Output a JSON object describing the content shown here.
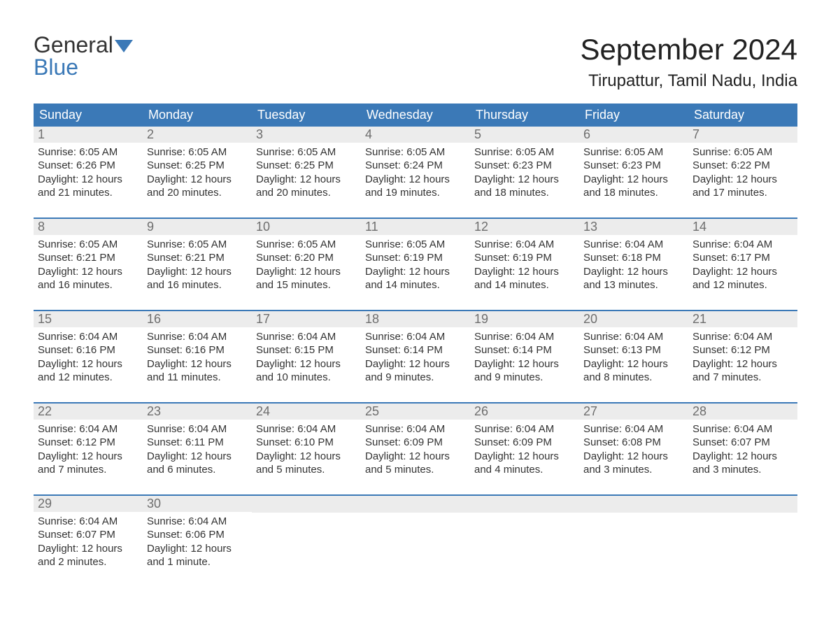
{
  "brand": {
    "word1": "General",
    "word2": "Blue",
    "flag_color": "#3b79b7",
    "text_color": "#333333"
  },
  "title": "September 2024",
  "location": "Tirupattur, Tamil Nadu, India",
  "day_headers": [
    "Sunday",
    "Monday",
    "Tuesday",
    "Wednesday",
    "Thursday",
    "Friday",
    "Saturday"
  ],
  "colors": {
    "header_bg": "#3b79b7",
    "header_text": "#ffffff",
    "daynum_bg": "#ececec",
    "daynum_text": "#6e6e6e",
    "body_text": "#333333",
    "row_divider": "#3b79b7",
    "background": "#ffffff"
  },
  "typography": {
    "title_fontsize": 42,
    "location_fontsize": 24,
    "header_fontsize": 18,
    "daynum_fontsize": 18,
    "body_fontsize": 15
  },
  "weeks": [
    [
      {
        "n": "1",
        "sunrise": "Sunrise: 6:05 AM",
        "sunset": "Sunset: 6:26 PM",
        "day1": "Daylight: 12 hours",
        "day2": "and 21 minutes."
      },
      {
        "n": "2",
        "sunrise": "Sunrise: 6:05 AM",
        "sunset": "Sunset: 6:25 PM",
        "day1": "Daylight: 12 hours",
        "day2": "and 20 minutes."
      },
      {
        "n": "3",
        "sunrise": "Sunrise: 6:05 AM",
        "sunset": "Sunset: 6:25 PM",
        "day1": "Daylight: 12 hours",
        "day2": "and 20 minutes."
      },
      {
        "n": "4",
        "sunrise": "Sunrise: 6:05 AM",
        "sunset": "Sunset: 6:24 PM",
        "day1": "Daylight: 12 hours",
        "day2": "and 19 minutes."
      },
      {
        "n": "5",
        "sunrise": "Sunrise: 6:05 AM",
        "sunset": "Sunset: 6:23 PM",
        "day1": "Daylight: 12 hours",
        "day2": "and 18 minutes."
      },
      {
        "n": "6",
        "sunrise": "Sunrise: 6:05 AM",
        "sunset": "Sunset: 6:23 PM",
        "day1": "Daylight: 12 hours",
        "day2": "and 18 minutes."
      },
      {
        "n": "7",
        "sunrise": "Sunrise: 6:05 AM",
        "sunset": "Sunset: 6:22 PM",
        "day1": "Daylight: 12 hours",
        "day2": "and 17 minutes."
      }
    ],
    [
      {
        "n": "8",
        "sunrise": "Sunrise: 6:05 AM",
        "sunset": "Sunset: 6:21 PM",
        "day1": "Daylight: 12 hours",
        "day2": "and 16 minutes."
      },
      {
        "n": "9",
        "sunrise": "Sunrise: 6:05 AM",
        "sunset": "Sunset: 6:21 PM",
        "day1": "Daylight: 12 hours",
        "day2": "and 16 minutes."
      },
      {
        "n": "10",
        "sunrise": "Sunrise: 6:05 AM",
        "sunset": "Sunset: 6:20 PM",
        "day1": "Daylight: 12 hours",
        "day2": "and 15 minutes."
      },
      {
        "n": "11",
        "sunrise": "Sunrise: 6:05 AM",
        "sunset": "Sunset: 6:19 PM",
        "day1": "Daylight: 12 hours",
        "day2": "and 14 minutes."
      },
      {
        "n": "12",
        "sunrise": "Sunrise: 6:04 AM",
        "sunset": "Sunset: 6:19 PM",
        "day1": "Daylight: 12 hours",
        "day2": "and 14 minutes."
      },
      {
        "n": "13",
        "sunrise": "Sunrise: 6:04 AM",
        "sunset": "Sunset: 6:18 PM",
        "day1": "Daylight: 12 hours",
        "day2": "and 13 minutes."
      },
      {
        "n": "14",
        "sunrise": "Sunrise: 6:04 AM",
        "sunset": "Sunset: 6:17 PM",
        "day1": "Daylight: 12 hours",
        "day2": "and 12 minutes."
      }
    ],
    [
      {
        "n": "15",
        "sunrise": "Sunrise: 6:04 AM",
        "sunset": "Sunset: 6:16 PM",
        "day1": "Daylight: 12 hours",
        "day2": "and 12 minutes."
      },
      {
        "n": "16",
        "sunrise": "Sunrise: 6:04 AM",
        "sunset": "Sunset: 6:16 PM",
        "day1": "Daylight: 12 hours",
        "day2": "and 11 minutes."
      },
      {
        "n": "17",
        "sunrise": "Sunrise: 6:04 AM",
        "sunset": "Sunset: 6:15 PM",
        "day1": "Daylight: 12 hours",
        "day2": "and 10 minutes."
      },
      {
        "n": "18",
        "sunrise": "Sunrise: 6:04 AM",
        "sunset": "Sunset: 6:14 PM",
        "day1": "Daylight: 12 hours",
        "day2": "and 9 minutes."
      },
      {
        "n": "19",
        "sunrise": "Sunrise: 6:04 AM",
        "sunset": "Sunset: 6:14 PM",
        "day1": "Daylight: 12 hours",
        "day2": "and 9 minutes."
      },
      {
        "n": "20",
        "sunrise": "Sunrise: 6:04 AM",
        "sunset": "Sunset: 6:13 PM",
        "day1": "Daylight: 12 hours",
        "day2": "and 8 minutes."
      },
      {
        "n": "21",
        "sunrise": "Sunrise: 6:04 AM",
        "sunset": "Sunset: 6:12 PM",
        "day1": "Daylight: 12 hours",
        "day2": "and 7 minutes."
      }
    ],
    [
      {
        "n": "22",
        "sunrise": "Sunrise: 6:04 AM",
        "sunset": "Sunset: 6:12 PM",
        "day1": "Daylight: 12 hours",
        "day2": "and 7 minutes."
      },
      {
        "n": "23",
        "sunrise": "Sunrise: 6:04 AM",
        "sunset": "Sunset: 6:11 PM",
        "day1": "Daylight: 12 hours",
        "day2": "and 6 minutes."
      },
      {
        "n": "24",
        "sunrise": "Sunrise: 6:04 AM",
        "sunset": "Sunset: 6:10 PM",
        "day1": "Daylight: 12 hours",
        "day2": "and 5 minutes."
      },
      {
        "n": "25",
        "sunrise": "Sunrise: 6:04 AM",
        "sunset": "Sunset: 6:09 PM",
        "day1": "Daylight: 12 hours",
        "day2": "and 5 minutes."
      },
      {
        "n": "26",
        "sunrise": "Sunrise: 6:04 AM",
        "sunset": "Sunset: 6:09 PM",
        "day1": "Daylight: 12 hours",
        "day2": "and 4 minutes."
      },
      {
        "n": "27",
        "sunrise": "Sunrise: 6:04 AM",
        "sunset": "Sunset: 6:08 PM",
        "day1": "Daylight: 12 hours",
        "day2": "and 3 minutes."
      },
      {
        "n": "28",
        "sunrise": "Sunrise: 6:04 AM",
        "sunset": "Sunset: 6:07 PM",
        "day1": "Daylight: 12 hours",
        "day2": "and 3 minutes."
      }
    ],
    [
      {
        "n": "29",
        "sunrise": "Sunrise: 6:04 AM",
        "sunset": "Sunset: 6:07 PM",
        "day1": "Daylight: 12 hours",
        "day2": "and 2 minutes."
      },
      {
        "n": "30",
        "sunrise": "Sunrise: 6:04 AM",
        "sunset": "Sunset: 6:06 PM",
        "day1": "Daylight: 12 hours",
        "day2": "and 1 minute."
      },
      null,
      null,
      null,
      null,
      null
    ]
  ]
}
